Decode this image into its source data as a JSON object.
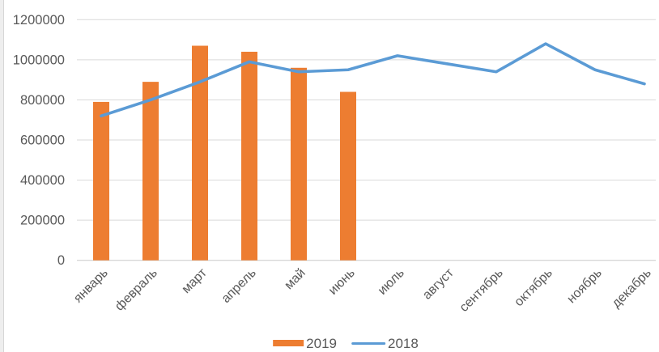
{
  "chart_data": {
    "type": "bar",
    "subtype": "combo-bar-line",
    "title": "",
    "xlabel": "",
    "ylabel": "",
    "categories": [
      "январь",
      "февраль",
      "март",
      "апрель",
      "май",
      "июнь",
      "июль",
      "август",
      "сентябрь",
      "октябрь",
      "ноябрь",
      "декабрь"
    ],
    "series": [
      {
        "name": "2019",
        "type": "bar",
        "color": "#ED7D31",
        "values": [
          790000,
          890000,
          1070000,
          1040000,
          960000,
          840000,
          null,
          null,
          null,
          null,
          null,
          null
        ]
      },
      {
        "name": "2018",
        "type": "line",
        "color": "#5B9BD5",
        "values": [
          720000,
          800000,
          890000,
          990000,
          940000,
          950000,
          1020000,
          980000,
          940000,
          1080000,
          950000,
          880000
        ]
      }
    ],
    "ylim": [
      0,
      1200000
    ],
    "yticks": [
      0,
      200000,
      400000,
      600000,
      800000,
      1000000,
      1200000
    ],
    "grid": true,
    "legend_position": "bottom"
  },
  "legend": {
    "items": [
      {
        "label": "2019",
        "swatch": "bar-swatch"
      },
      {
        "label": "2018",
        "swatch": "line-swatch"
      }
    ]
  },
  "colors": {
    "bar_series": "#ED7D31",
    "line_series": "#5B9BD5",
    "gridline": "#D9D9D9",
    "axis_line": "#C9C9C9",
    "tick_text": "#595959"
  }
}
